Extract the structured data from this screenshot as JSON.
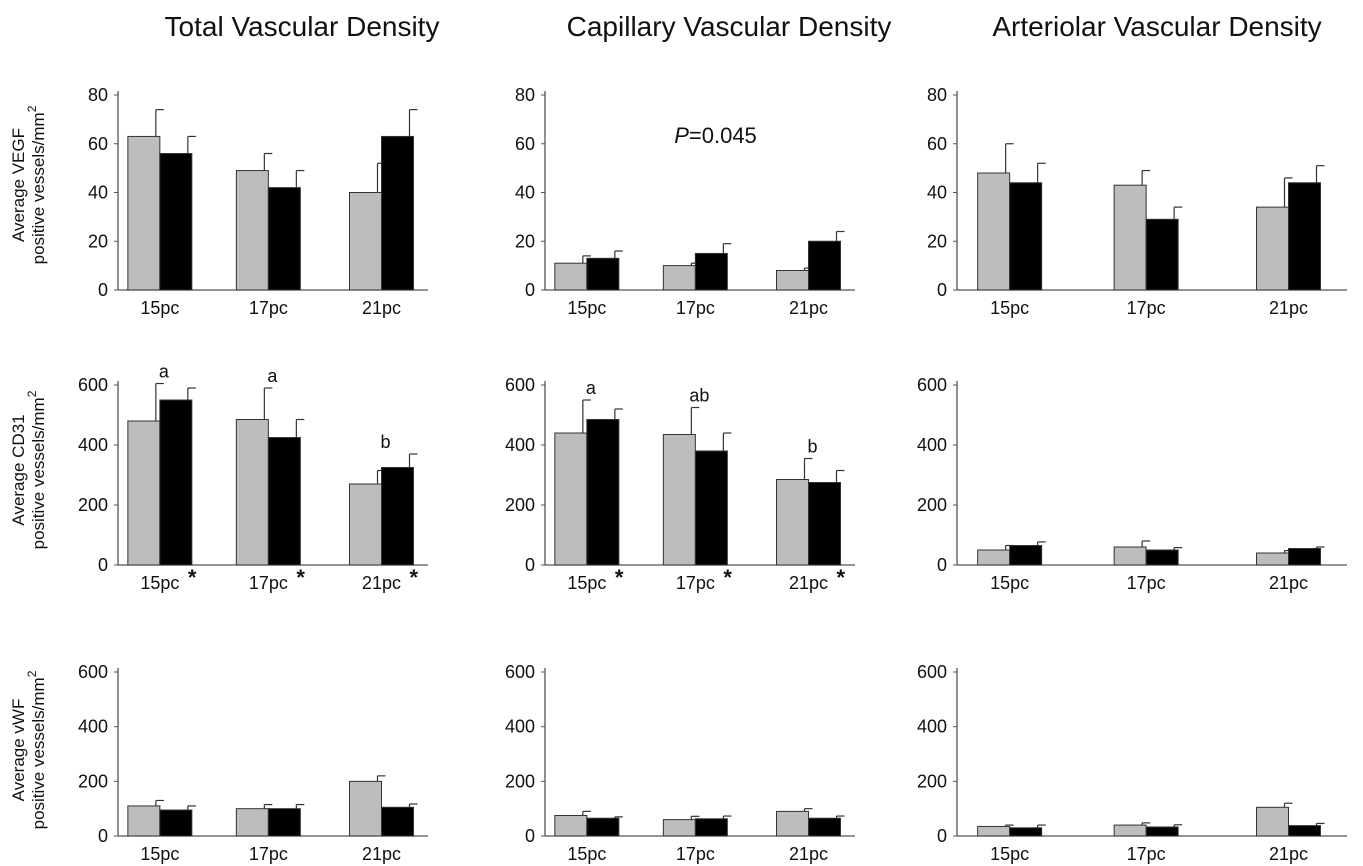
{
  "column_titles": [
    "Total Vascular Density",
    "Capillary Vascular Density",
    "Arteriolar Vascular Density"
  ],
  "row_labels": [
    {
      "line1": "Average VEGF",
      "line2": "positive vessels/mm",
      "sup": "2"
    },
    {
      "line1": "Average CD31",
      "line2": "positive vessels/mm",
      "sup": "2"
    },
    {
      "line1": "Average vWF",
      "line2": "positive vessels/mm",
      "sup": "2"
    }
  ],
  "colors": {
    "series_a": "#bdbdbd",
    "series_b": "#000000",
    "axis": "#555555"
  },
  "chart_data": [
    {
      "type": "bar",
      "row": 0,
      "col": 0,
      "categories": [
        "15pc",
        "17pc",
        "21pc"
      ],
      "ylim": [
        0,
        80
      ],
      "yticks": [
        0,
        20,
        40,
        60,
        80
      ],
      "series": [
        {
          "values": [
            63,
            49,
            40
          ],
          "errors": [
            11,
            7,
            12
          ]
        },
        {
          "values": [
            56,
            42,
            63
          ],
          "errors": [
            7,
            7,
            11
          ]
        }
      ],
      "annotations": [],
      "stars": [
        false,
        false,
        false
      ],
      "pvalue": null
    },
    {
      "type": "bar",
      "row": 0,
      "col": 1,
      "categories": [
        "15pc",
        "17pc",
        "21pc"
      ],
      "ylim": [
        0,
        80
      ],
      "yticks": [
        0,
        20,
        40,
        60,
        80
      ],
      "series": [
        {
          "values": [
            11,
            10,
            8
          ],
          "errors": [
            3,
            1,
            1
          ]
        },
        {
          "values": [
            13,
            15,
            20
          ],
          "errors": [
            3,
            4,
            4
          ]
        }
      ],
      "annotations": [],
      "stars": [
        false,
        false,
        false
      ],
      "pvalue": {
        "label": "P",
        "text": "=0.045"
      }
    },
    {
      "type": "bar",
      "row": 0,
      "col": 2,
      "categories": [
        "15pc",
        "17pc",
        "21pc"
      ],
      "ylim": [
        0,
        80
      ],
      "yticks": [
        0,
        20,
        40,
        60,
        80
      ],
      "series": [
        {
          "values": [
            48,
            43,
            34
          ],
          "errors": [
            12,
            6,
            12
          ]
        },
        {
          "values": [
            44,
            29,
            44
          ],
          "errors": [
            8,
            5,
            7
          ]
        }
      ],
      "annotations": [],
      "stars": [
        false,
        false,
        false
      ],
      "pvalue": null
    },
    {
      "type": "bar",
      "row": 1,
      "col": 0,
      "categories": [
        "15pc",
        "17pc",
        "21pc"
      ],
      "ylim": [
        0,
        600
      ],
      "yticks": [
        0,
        200,
        400,
        600
      ],
      "series": [
        {
          "values": [
            480,
            485,
            270
          ],
          "errors": [
            125,
            105,
            45
          ]
        },
        {
          "values": [
            550,
            425,
            325
          ],
          "errors": [
            40,
            60,
            45
          ]
        }
      ],
      "annotations": [
        "a",
        "a",
        "b"
      ],
      "stars": [
        true,
        true,
        true
      ],
      "pvalue": null
    },
    {
      "type": "bar",
      "row": 1,
      "col": 1,
      "categories": [
        "15pc",
        "17pc",
        "21pc"
      ],
      "ylim": [
        0,
        600
      ],
      "yticks": [
        0,
        200,
        400,
        600
      ],
      "series": [
        {
          "values": [
            440,
            435,
            285
          ],
          "errors": [
            110,
            90,
            70
          ]
        },
        {
          "values": [
            485,
            380,
            275
          ],
          "errors": [
            35,
            60,
            40
          ]
        }
      ],
      "annotations": [
        "a",
        "ab",
        "b"
      ],
      "stars": [
        true,
        true,
        true
      ],
      "pvalue": null
    },
    {
      "type": "bar",
      "row": 1,
      "col": 2,
      "categories": [
        "15pc",
        "17pc",
        "21pc"
      ],
      "ylim": [
        0,
        600
      ],
      "yticks": [
        0,
        200,
        400,
        600
      ],
      "series": [
        {
          "values": [
            50,
            60,
            40
          ],
          "errors": [
            15,
            20,
            8
          ]
        },
        {
          "values": [
            65,
            50,
            55
          ],
          "errors": [
            12,
            8,
            5
          ]
        }
      ],
      "annotations": [],
      "stars": [
        false,
        false,
        false
      ],
      "pvalue": null
    },
    {
      "type": "bar",
      "row": 2,
      "col": 0,
      "categories": [
        "15pc",
        "17pc",
        "21pc"
      ],
      "ylim": [
        0,
        600
      ],
      "yticks": [
        0,
        200,
        400,
        600
      ],
      "series": [
        {
          "values": [
            110,
            100,
            200
          ],
          "errors": [
            20,
            15,
            20
          ]
        },
        {
          "values": [
            95,
            100,
            105
          ],
          "errors": [
            15,
            15,
            12
          ]
        }
      ],
      "annotations": [],
      "stars": [
        false,
        false,
        false
      ],
      "pvalue": null
    },
    {
      "type": "bar",
      "row": 2,
      "col": 1,
      "categories": [
        "15pc",
        "17pc",
        "21pc"
      ],
      "ylim": [
        0,
        600
      ],
      "yticks": [
        0,
        200,
        400,
        600
      ],
      "series": [
        {
          "values": [
            75,
            60,
            90
          ],
          "errors": [
            15,
            12,
            10
          ]
        },
        {
          "values": [
            65,
            63,
            65
          ],
          "errors": [
            5,
            10,
            8
          ]
        }
      ],
      "annotations": [],
      "stars": [
        false,
        false,
        false
      ],
      "pvalue": null
    },
    {
      "type": "bar",
      "row": 2,
      "col": 2,
      "categories": [
        "15pc",
        "17pc",
        "21pc"
      ],
      "ylim": [
        0,
        600
      ],
      "yticks": [
        0,
        200,
        400,
        600
      ],
      "series": [
        {
          "values": [
            35,
            40,
            105
          ],
          "errors": [
            5,
            8,
            15
          ]
        },
        {
          "values": [
            30,
            33,
            38
          ],
          "errors": [
            10,
            8,
            8
          ]
        }
      ],
      "annotations": [],
      "stars": [
        false,
        false,
        false
      ],
      "pvalue": null
    }
  ]
}
